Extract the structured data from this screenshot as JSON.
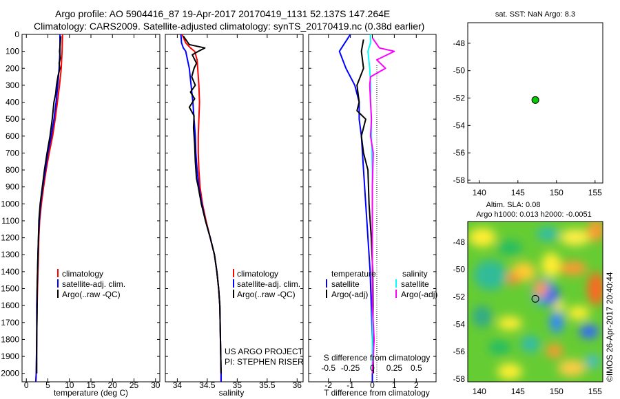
{
  "header": {
    "line1": "Argo profile: AO 5904416_87 19-Apr-2017 20170419_1131 52.137S 147.264E",
    "line2": "Climatology: CARS2009. Satellite-adjusted climatology: synTS_20170419.nc (0.38d earlier)"
  },
  "colors": {
    "climatology": "#ff0000",
    "satellite": "#0000ff",
    "argo": "#000000",
    "satellite_salinity": "#00ffff",
    "argo_adj_salinity": "#ff00ff",
    "argo_position_marker": "#00cc00"
  },
  "chart_data": [
    {
      "type": "line",
      "xlabel": "temperature (deg C)",
      "xlim": [
        -1,
        31
      ],
      "xticks": [
        0,
        5,
        10,
        15,
        20,
        25,
        30
      ],
      "ylim": [
        2050,
        0
      ],
      "yticks": [
        0,
        100,
        200,
        300,
        400,
        500,
        600,
        700,
        800,
        900,
        1000,
        1100,
        1200,
        1300,
        1400,
        1500,
        1600,
        1700,
        1800,
        1900,
        2000
      ],
      "legend": {
        "placement": "bottom-left",
        "entries": [
          "climatology",
          "satellite-adj. clim.",
          "Argo(..raw -QC)"
        ]
      },
      "series": [
        {
          "name": "climatology",
          "color": "#ff0000",
          "points": [
            [
              8.4,
              0
            ],
            [
              8.3,
              100
            ],
            [
              8.1,
              200
            ],
            [
              7.7,
              300
            ],
            [
              7.2,
              400
            ],
            [
              6.7,
              500
            ],
            [
              6.1,
              600
            ],
            [
              5.3,
              700
            ],
            [
              4.6,
              800
            ],
            [
              4.0,
              900
            ],
            [
              3.5,
              1000
            ],
            [
              3.1,
              1100
            ],
            [
              2.9,
              1200
            ],
            [
              2.8,
              1300
            ],
            [
              2.7,
              1400
            ],
            [
              2.6,
              1500
            ],
            [
              2.5,
              1600
            ],
            [
              2.4,
              1800
            ],
            [
              2.3,
              2000
            ],
            [
              2.2,
              2050
            ]
          ]
        },
        {
          "name": "satellite-adj. clim.",
          "color": "#0000ff",
          "points": [
            [
              7.8,
              0
            ],
            [
              7.8,
              100
            ],
            [
              7.6,
              200
            ],
            [
              7.3,
              300
            ],
            [
              6.9,
              400
            ],
            [
              6.4,
              500
            ],
            [
              5.8,
              600
            ],
            [
              5.0,
              700
            ],
            [
              4.4,
              800
            ],
            [
              3.8,
              900
            ],
            [
              3.3,
              1000
            ],
            [
              3.0,
              1100
            ],
            [
              2.8,
              1200
            ],
            [
              2.7,
              1300
            ],
            [
              2.6,
              1400
            ],
            [
              2.5,
              1500
            ],
            [
              2.4,
              1600
            ],
            [
              2.4,
              1800
            ],
            [
              2.3,
              2000
            ],
            [
              2.2,
              2050
            ]
          ]
        },
        {
          "name": "Argo(..raw -QC)",
          "color": "#000000",
          "points": [
            [
              8.0,
              10
            ],
            [
              7.9,
              50
            ],
            [
              7.7,
              100
            ],
            [
              7.9,
              140
            ],
            [
              7.6,
              170
            ],
            [
              7.8,
              200
            ],
            [
              7.4,
              240
            ],
            [
              7.0,
              300
            ],
            [
              6.8,
              350
            ],
            [
              6.4,
              400
            ],
            [
              6.0,
              500
            ],
            [
              5.5,
              600
            ],
            [
              4.8,
              700
            ],
            [
              4.2,
              800
            ],
            [
              3.7,
              900
            ],
            [
              3.2,
              1000
            ],
            [
              2.9,
              1100
            ],
            [
              2.8,
              1200
            ],
            [
              2.7,
              1300
            ],
            [
              2.6,
              1400
            ],
            [
              2.5,
              1500
            ],
            [
              2.5,
              1600
            ],
            [
              2.4,
              1800
            ],
            [
              2.4,
              2000
            ]
          ]
        }
      ]
    },
    {
      "type": "line",
      "xlabel": "salinity",
      "xlim": [
        33.8,
        36.1
      ],
      "xticks": [
        34,
        34.5,
        35,
        35.5,
        36
      ],
      "ylim": [
        2050,
        0
      ],
      "legend": {
        "placement": "bottom-left",
        "entries": [
          "climatology",
          "satellite-adj. clim.",
          "Argo(..raw -QC)"
        ]
      },
      "annotations": [
        "US ARGO PROJECT",
        "PI: STEPHEN RISER"
      ],
      "series": [
        {
          "name": "climatology",
          "color": "#ff0000",
          "points": [
            [
              34.08,
              0
            ],
            [
              34.14,
              50
            ],
            [
              34.22,
              80
            ],
            [
              34.29,
              100
            ],
            [
              34.33,
              150
            ],
            [
              34.34,
              200
            ],
            [
              34.36,
              300
            ],
            [
              34.37,
              400
            ],
            [
              34.36,
              500
            ],
            [
              34.35,
              600
            ],
            [
              34.35,
              700
            ],
            [
              34.36,
              800
            ],
            [
              34.38,
              900
            ],
            [
              34.42,
              1000
            ],
            [
              34.48,
              1100
            ],
            [
              34.55,
              1200
            ],
            [
              34.62,
              1300
            ],
            [
              34.66,
              1400
            ],
            [
              34.69,
              1500
            ],
            [
              34.71,
              1600
            ],
            [
              34.72,
              1800
            ],
            [
              34.73,
              2000
            ],
            [
              34.73,
              2050
            ]
          ]
        },
        {
          "name": "satellite-adj. clim.",
          "color": "#0000ff",
          "points": [
            [
              34.06,
              0
            ],
            [
              34.07,
              50
            ],
            [
              34.1,
              80
            ],
            [
              34.14,
              100
            ],
            [
              34.17,
              150
            ],
            [
              34.2,
              200
            ],
            [
              34.23,
              300
            ],
            [
              34.26,
              400
            ],
            [
              34.28,
              500
            ],
            [
              34.3,
              600
            ],
            [
              34.31,
              700
            ],
            [
              34.33,
              800
            ],
            [
              34.36,
              900
            ],
            [
              34.41,
              1000
            ],
            [
              34.47,
              1100
            ],
            [
              34.55,
              1200
            ],
            [
              34.62,
              1300
            ],
            [
              34.66,
              1400
            ],
            [
              34.69,
              1500
            ],
            [
              34.71,
              1600
            ],
            [
              34.72,
              1800
            ],
            [
              34.73,
              2000
            ],
            [
              34.73,
              2050
            ]
          ]
        },
        {
          "name": "Argo(..raw -QC)",
          "color": "#000000",
          "points": [
            [
              34.1,
              10
            ],
            [
              34.2,
              60
            ],
            [
              34.46,
              80
            ],
            [
              34.35,
              100
            ],
            [
              34.25,
              120
            ],
            [
              34.32,
              170
            ],
            [
              34.28,
              200
            ],
            [
              34.24,
              250
            ],
            [
              34.3,
              300
            ],
            [
              34.22,
              340
            ],
            [
              34.29,
              380
            ],
            [
              34.2,
              430
            ],
            [
              34.28,
              480
            ],
            [
              34.27,
              550
            ],
            [
              34.29,
              650
            ],
            [
              34.3,
              750
            ],
            [
              34.32,
              850
            ],
            [
              34.35,
              900
            ],
            [
              34.4,
              1000
            ],
            [
              34.47,
              1100
            ],
            [
              34.55,
              1200
            ],
            [
              34.62,
              1300
            ],
            [
              34.66,
              1400
            ],
            [
              34.69,
              1500
            ],
            [
              34.71,
              1600
            ],
            [
              34.72,
              1800
            ],
            [
              34.73,
              2000
            ]
          ]
        }
      ]
    },
    {
      "type": "line",
      "xlabel": "T difference from climatology",
      "xlabel_top": "S difference from climatology",
      "xlim": [
        -2.9,
        2.9
      ],
      "xticks_bottom": [
        -2,
        -1,
        0,
        1,
        2
      ],
      "xticks_top_labels": [
        "-0.5",
        "-0.25",
        "0",
        "0.25",
        "0.5"
      ],
      "ylim": [
        2050,
        0
      ],
      "legend": {
        "placement": "bottom",
        "temperature_title": "temperature",
        "salinity_title": "salinity",
        "entries": [
          "satellite",
          "Argo(-adj)",
          "satellite",
          "Argo(-adj)"
        ]
      },
      "series": [
        {
          "name": "satellite",
          "group": "temperature",
          "color": "#0000ff",
          "points": [
            [
              -1.0,
              0
            ],
            [
              -1.5,
              100
            ],
            [
              -1.2,
              200
            ],
            [
              -0.8,
              300
            ],
            [
              -0.6,
              400
            ],
            [
              -0.6,
              500
            ],
            [
              -0.5,
              600
            ],
            [
              -0.4,
              800
            ],
            [
              -0.3,
              1000
            ],
            [
              -0.2,
              1200
            ],
            [
              -0.1,
              1400
            ],
            [
              -0.05,
              1600
            ],
            [
              0,
              1800
            ],
            [
              0,
              2050
            ]
          ]
        },
        {
          "name": "Argo(-adj)",
          "group": "temperature",
          "color": "#000000",
          "points": [
            [
              -0.4,
              30
            ],
            [
              -0.5,
              100
            ],
            [
              -0.4,
              200
            ],
            [
              -0.7,
              300
            ],
            [
              -0.6,
              400
            ],
            [
              -0.7,
              450
            ],
            [
              -0.3,
              500
            ],
            [
              -0.5,
              600
            ],
            [
              -0.4,
              700
            ],
            [
              -0.2,
              800
            ],
            [
              -0.15,
              1000
            ],
            [
              -0.05,
              1200
            ],
            [
              0.02,
              1400
            ],
            [
              0.03,
              1600
            ],
            [
              0.02,
              1800
            ],
            [
              0.05,
              2000
            ]
          ]
        },
        {
          "name": "satellite",
          "group": "salinity",
          "color": "#00ffff",
          "points": [
            [
              -0.02,
              0
            ],
            [
              -0.02,
              50
            ],
            [
              -0.05,
              100
            ],
            [
              -0.03,
              200
            ],
            [
              -0.02,
              300
            ],
            [
              -0.02,
              400
            ],
            [
              -0.01,
              500
            ],
            [
              -0.01,
              600
            ],
            [
              0,
              800
            ],
            [
              0,
              1000
            ],
            [
              0,
              1200
            ],
            [
              0,
              1400
            ],
            [
              0,
              1600
            ],
            [
              0,
              2000
            ]
          ]
        },
        {
          "name": "Argo(-adj)",
          "group": "salinity",
          "color": "#ff00ff",
          "points": [
            [
              0.0,
              20
            ],
            [
              0.08,
              80
            ],
            [
              0.25,
              100
            ],
            [
              0.05,
              150
            ],
            [
              0.15,
              200
            ],
            [
              -0.02,
              250
            ],
            [
              -0.03,
              300
            ],
            [
              -0.02,
              400
            ],
            [
              -0.01,
              500
            ],
            [
              -0.02,
              600
            ],
            [
              0.01,
              700
            ],
            [
              0,
              900
            ],
            [
              0,
              1100
            ],
            [
              0,
              1400
            ],
            [
              0,
              1600
            ],
            [
              0.02,
              1800
            ],
            [
              0,
              2000
            ]
          ]
        }
      ]
    },
    {
      "type": "scatter",
      "title": "sat. SST: NaN  Argo: 8.3",
      "xlim": [
        138.5,
        156
      ],
      "xticks": [
        140,
        145,
        150,
        155
      ],
      "ylim": [
        -58.2,
        -46.5
      ],
      "yticks": [
        -48,
        -50,
        -52,
        -54,
        -56,
        -58
      ],
      "points": [
        {
          "x": 147.26,
          "y": -52.14
        }
      ]
    },
    {
      "type": "heatmap",
      "title_line1": "Altim. SLA: 0.08",
      "title_line2": "Argo h1000: 0.013 h2000: -0.0051",
      "xlim": [
        138.5,
        156
      ],
      "xticks": [
        140,
        145,
        150,
        155
      ],
      "ylim": [
        -58.2,
        -46.5
      ],
      "yticks": [
        -48,
        -50,
        -52,
        -54,
        -56,
        -58
      ],
      "points": [
        {
          "x": 147.26,
          "y": -52.14
        }
      ]
    }
  ],
  "footer": {
    "vertical_credit": "©IMOS 26-Apr-2017 20:40:44"
  }
}
